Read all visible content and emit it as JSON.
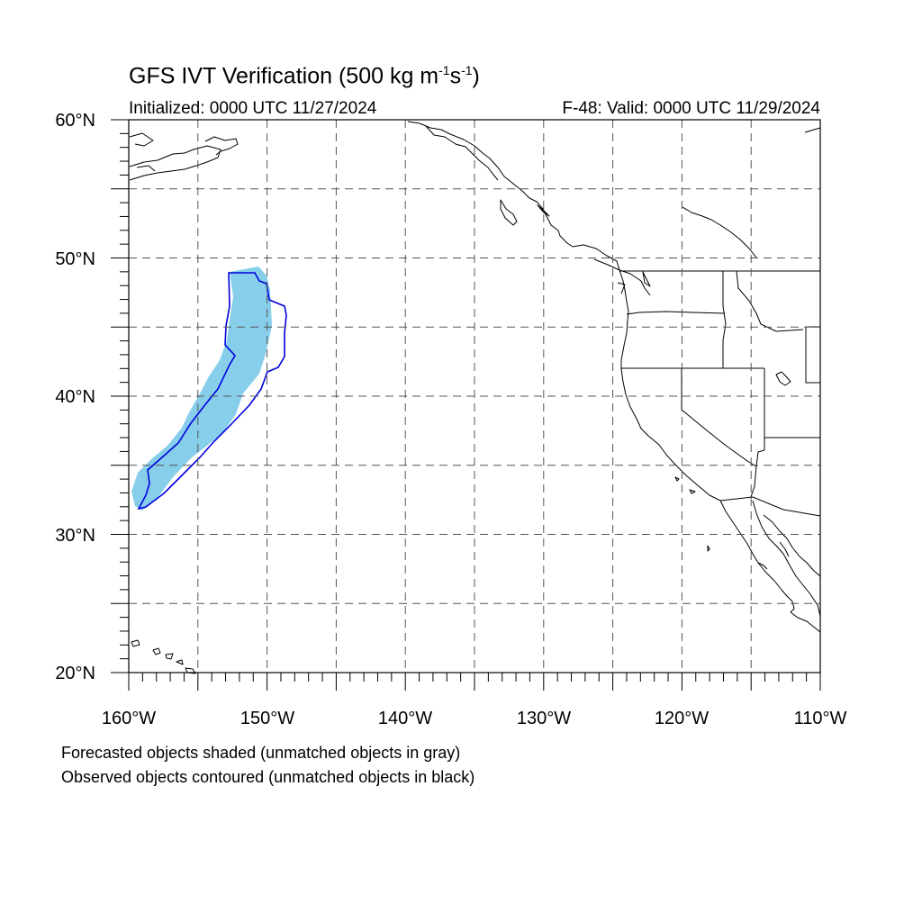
{
  "title": {
    "prefix": "GFS IVT Verification (500 kg m",
    "sup1": "-1",
    "mid": "s",
    "sup2": "-1",
    "suffix": ")"
  },
  "initialized": "Initialized: 0000 UTC 11/27/2024",
  "valid": "F-48: Valid: 0000 UTC 11/29/2024",
  "lat_labels": [
    "60°N",
    "50°N",
    "40°N",
    "30°N",
    "20°N"
  ],
  "lon_labels": [
    "160°W",
    "150°W",
    "140°W",
    "130°W",
    "120°W",
    "110°W"
  ],
  "captions": [
    "Forecasted objects shaded (unmatched objects in gray)",
    "Observed objects contoured (unmatched objects in black)"
  ],
  "map": {
    "lon_range": [
      -160,
      -110
    ],
    "lat_range": [
      20,
      60
    ],
    "gridline_interval_deg": 5,
    "forecast_fill_color": "#87ceeb",
    "observed_contour_color": "#0000dd",
    "coastline_color": "#000000"
  }
}
